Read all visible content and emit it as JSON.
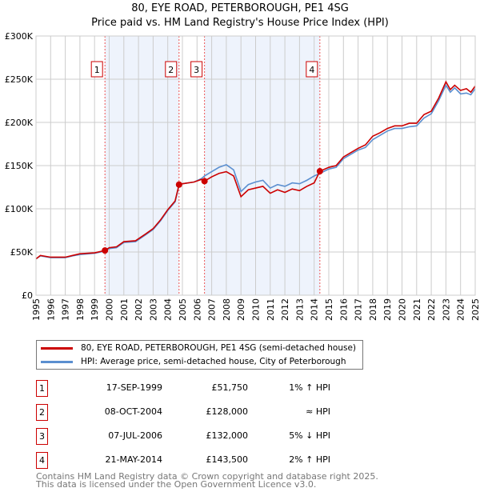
{
  "chart_data": {
    "type": "line",
    "title": "80, EYE ROAD, PETERBOROUGH, PE1 4SG",
    "subtitle": "Price paid vs. HM Land Registry's House Price Index (HPI)",
    "xlim": [
      1995,
      2025
    ],
    "ylim": [
      0,
      300000
    ],
    "y_ticks": [
      {
        "v": 0,
        "label": "£0"
      },
      {
        "v": 50000,
        "label": "£50K"
      },
      {
        "v": 100000,
        "label": "£100K"
      },
      {
        "v": 150000,
        "label": "£150K"
      },
      {
        "v": 200000,
        "label": "£200K"
      },
      {
        "v": 250000,
        "label": "£250K"
      },
      {
        "v": 300000,
        "label": "£300K"
      }
    ],
    "x_ticks": [
      "1995",
      "1996",
      "1997",
      "1998",
      "1999",
      "2000",
      "2001",
      "2002",
      "2003",
      "2004",
      "2005",
      "2006",
      "2007",
      "2008",
      "2009",
      "2010",
      "2011",
      "2012",
      "2013",
      "2014",
      "2015",
      "2016",
      "2017",
      "2018",
      "2019",
      "2020",
      "2021",
      "2022",
      "2023",
      "2024",
      "2025"
    ],
    "grid": true,
    "series": [
      {
        "name": "80, EYE ROAD, PETERBOROUGH, PE1 4SG (semi-detached house)",
        "color": "#cc0000",
        "points": [
          [
            1995,
            42000
          ],
          [
            1995.3,
            46000
          ],
          [
            1996,
            44000
          ],
          [
            1997,
            44000
          ],
          [
            1997.5,
            46000
          ],
          [
            1998,
            48000
          ],
          [
            1999,
            49000
          ],
          [
            1999.71,
            51750
          ],
          [
            2000,
            55000
          ],
          [
            2000.5,
            56000
          ],
          [
            2001,
            62000
          ],
          [
            2001.8,
            63000
          ],
          [
            2002.5,
            71000
          ],
          [
            2003,
            77000
          ],
          [
            2003.5,
            87000
          ],
          [
            2004,
            99000
          ],
          [
            2004.5,
            109000
          ],
          [
            2004.77,
            128000
          ],
          [
            2005,
            129000
          ],
          [
            2005.8,
            131000
          ],
          [
            2006.3,
            134000
          ],
          [
            2006.51,
            132000
          ],
          [
            2007,
            137000
          ],
          [
            2007.5,
            141000
          ],
          [
            2008,
            143000
          ],
          [
            2008.5,
            138000
          ],
          [
            2009,
            114000
          ],
          [
            2009.5,
            122000
          ],
          [
            2010,
            124000
          ],
          [
            2010.5,
            126000
          ],
          [
            2011,
            118000
          ],
          [
            2011.5,
            122000
          ],
          [
            2012,
            119000
          ],
          [
            2012.5,
            123000
          ],
          [
            2013,
            121000
          ],
          [
            2013.5,
            126000
          ],
          [
            2014,
            130000
          ],
          [
            2014.39,
            143500
          ],
          [
            2015,
            148000
          ],
          [
            2015.5,
            150000
          ],
          [
            2016,
            160000
          ],
          [
            2016.5,
            165000
          ],
          [
            2017,
            170000
          ],
          [
            2017.5,
            174000
          ],
          [
            2018,
            184000
          ],
          [
            2018.5,
            188000
          ],
          [
            2019,
            193000
          ],
          [
            2019.5,
            196000
          ],
          [
            2020,
            196000
          ],
          [
            2020.5,
            199000
          ],
          [
            2021,
            199000
          ],
          [
            2021.5,
            209000
          ],
          [
            2022,
            213000
          ],
          [
            2022.5,
            228000
          ],
          [
            2023,
            247000
          ],
          [
            2023.3,
            238000
          ],
          [
            2023.6,
            243000
          ],
          [
            2024,
            237000
          ],
          [
            2024.4,
            239000
          ],
          [
            2024.7,
            235000
          ],
          [
            2025,
            242000
          ]
        ]
      },
      {
        "name": "HPI: Average price, semi-detached house, City of Peterborough",
        "color": "#5b8fd0",
        "points": [
          [
            1995,
            42000
          ],
          [
            1995.3,
            45500
          ],
          [
            1996,
            43500
          ],
          [
            1997,
            43500
          ],
          [
            1997.5,
            45500
          ],
          [
            1998,
            47000
          ],
          [
            1999,
            48500
          ],
          [
            1999.71,
            51000
          ],
          [
            2000,
            54000
          ],
          [
            2000.5,
            55000
          ],
          [
            2001,
            61000
          ],
          [
            2001.8,
            62000
          ],
          [
            2002.5,
            70000
          ],
          [
            2003,
            76000
          ],
          [
            2003.5,
            86000
          ],
          [
            2004,
            98000
          ],
          [
            2004.5,
            108000
          ],
          [
            2004.77,
            127000
          ],
          [
            2005,
            129000
          ],
          [
            2005.8,
            131000
          ],
          [
            2006.3,
            135000
          ],
          [
            2006.51,
            138000
          ],
          [
            2007,
            143000
          ],
          [
            2007.5,
            148000
          ],
          [
            2008,
            151000
          ],
          [
            2008.5,
            145000
          ],
          [
            2009,
            120000
          ],
          [
            2009.5,
            128000
          ],
          [
            2010,
            131000
          ],
          [
            2010.5,
            133000
          ],
          [
            2011,
            124000
          ],
          [
            2011.5,
            128000
          ],
          [
            2012,
            126000
          ],
          [
            2012.5,
            130000
          ],
          [
            2013,
            129000
          ],
          [
            2013.5,
            133000
          ],
          [
            2014,
            138000
          ],
          [
            2014.39,
            141000
          ],
          [
            2015,
            146000
          ],
          [
            2015.5,
            148000
          ],
          [
            2016,
            158000
          ],
          [
            2016.5,
            163000
          ],
          [
            2017,
            168000
          ],
          [
            2017.5,
            171000
          ],
          [
            2018,
            180000
          ],
          [
            2018.5,
            185000
          ],
          [
            2019,
            190000
          ],
          [
            2019.5,
            193000
          ],
          [
            2020,
            193000
          ],
          [
            2020.5,
            195000
          ],
          [
            2021,
            196000
          ],
          [
            2021.5,
            205000
          ],
          [
            2022,
            210000
          ],
          [
            2022.5,
            225000
          ],
          [
            2023,
            243000
          ],
          [
            2023.3,
            235000
          ],
          [
            2023.6,
            240000
          ],
          [
            2024,
            233000
          ],
          [
            2024.4,
            234000
          ],
          [
            2024.7,
            232000
          ],
          [
            2025,
            239000
          ]
        ]
      }
    ],
    "sales": [
      {
        "n": "1",
        "x": 1999.71,
        "value": 51750,
        "date": "17-SEP-1999",
        "price": "£51,750",
        "hpi": "1% ↑ HPI"
      },
      {
        "n": "2",
        "x": 2004.77,
        "value": 128000,
        "date": "08-OCT-2004",
        "price": "£128,000",
        "hpi": "≈ HPI"
      },
      {
        "n": "3",
        "x": 2006.51,
        "value": 132000,
        "date": "07-JUL-2006",
        "price": "£132,000",
        "hpi": "5% ↓ HPI"
      },
      {
        "n": "4",
        "x": 2014.39,
        "value": 143500,
        "date": "21-MAY-2014",
        "price": "£143,500",
        "hpi": "2% ↑ HPI"
      }
    ],
    "shaded": [
      [
        1999.71,
        2004.77
      ],
      [
        2006.51,
        2014.39
      ]
    ]
  },
  "footer": {
    "line1": "Contains HM Land Registry data © Crown copyright and database right 2025.",
    "line2": "This data is licensed under the Open Government Licence v3.0."
  }
}
